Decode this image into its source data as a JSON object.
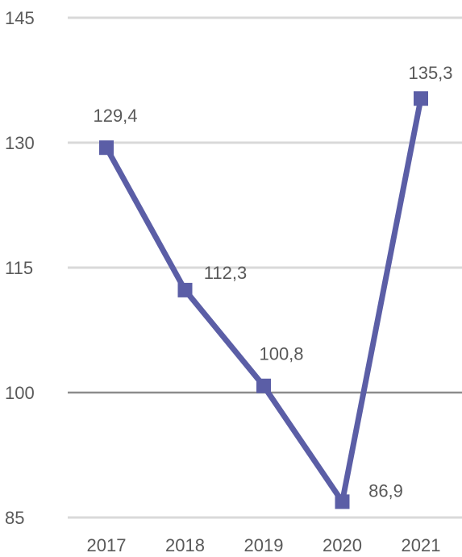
{
  "chart_data": {
    "type": "line",
    "title": "",
    "xlabel": "",
    "ylabel": "",
    "categories": [
      "2017",
      "2018",
      "2019",
      "2020",
      "2021"
    ],
    "series": [
      {
        "values": [
          129.4,
          112.3,
          100.8,
          86.9,
          135.3
        ],
        "data_labels": [
          "129,4",
          "112,3",
          "100,8",
          "86,9",
          "135,3"
        ],
        "color": "#5b5ea6",
        "marker": "square"
      }
    ],
    "ylim": [
      85,
      145
    ],
    "yticks": [
      85,
      100,
      115,
      130,
      145
    ],
    "ytick_labels": [
      "85",
      "100",
      "115",
      "130",
      "145"
    ],
    "grid": true,
    "legend": "none",
    "baseline_value": 100,
    "colors": {
      "line": "#5b5ea6",
      "gridline": "#d9d9d9",
      "baseline": "#8c8c8c",
      "text": "#595959"
    }
  }
}
